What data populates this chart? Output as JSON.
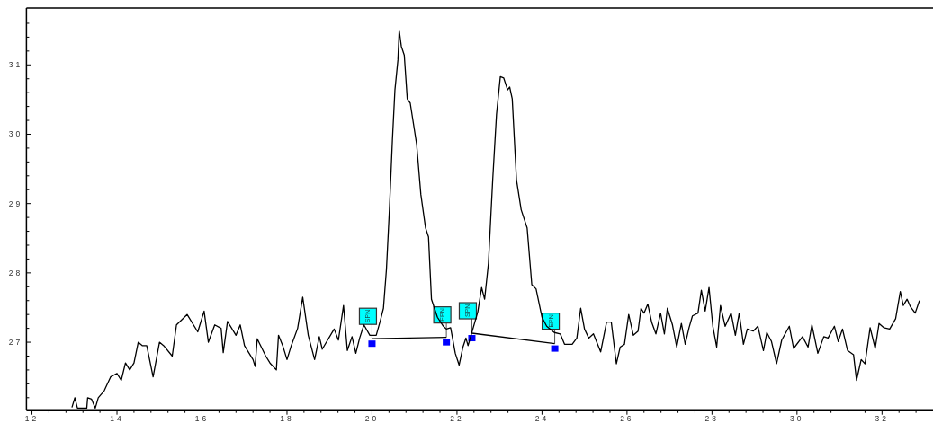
{
  "chart_data": {
    "type": "line",
    "xlim": [
      11.87,
      33.2
    ],
    "ylim": [
      26.02,
      31.82
    ],
    "xticks": [
      12,
      {
        "value": 12.4,
        "label": null
      },
      {
        "value": 12.8,
        "label": null
      },
      {
        "value": 13.2,
        "label": null
      },
      {
        "value": 13.6,
        "label": null
      },
      14,
      {
        "value": 14.4,
        "label": null
      },
      {
        "value": 14.8,
        "label": null
      },
      {
        "value": 15.2,
        "label": null
      },
      {
        "value": 15.6,
        "label": null
      },
      16,
      {
        "value": 16.4,
        "label": null
      },
      {
        "value": 16.8,
        "label": null
      },
      {
        "value": 17.2,
        "label": null
      },
      {
        "value": 17.6,
        "label": null
      },
      18,
      {
        "value": 18.4,
        "label": null
      },
      {
        "value": 18.8,
        "label": null
      },
      {
        "value": 19.2,
        "label": null
      },
      {
        "value": 19.6,
        "label": null
      },
      20,
      {
        "value": 20.4,
        "label": null
      },
      {
        "value": 20.8,
        "label": null
      },
      {
        "value": 21.2,
        "label": null
      },
      {
        "value": 21.6,
        "label": null
      },
      22,
      {
        "value": 22.4,
        "label": null
      },
      {
        "value": 22.8,
        "label": null
      },
      {
        "value": 23.2,
        "label": null
      },
      {
        "value": 23.6,
        "label": null
      },
      24,
      {
        "value": 24.4,
        "label": null
      },
      {
        "value": 24.8,
        "label": null
      },
      {
        "value": 25.2,
        "label": null
      },
      {
        "value": 25.6,
        "label": null
      },
      26,
      {
        "value": 26.4,
        "label": null
      },
      {
        "value": 26.8,
        "label": null
      },
      {
        "value": 27.2,
        "label": null
      },
      {
        "value": 27.6,
        "label": null
      },
      28,
      {
        "value": 28.4,
        "label": null
      },
      {
        "value": 28.8,
        "label": null
      },
      {
        "value": 29.2,
        "label": null
      },
      {
        "value": 29.6,
        "label": null
      },
      30,
      {
        "value": 30.4,
        "label": null
      },
      {
        "value": 30.8,
        "label": null
      },
      {
        "value": 31.2,
        "label": null
      },
      {
        "value": 31.6,
        "label": null
      },
      32,
      {
        "value": 32.4,
        "label": null
      },
      {
        "value": 32.8,
        "label": null
      }
    ],
    "yticks": [
      {
        "value": 26.2,
        "label": null
      },
      {
        "value": 26.4,
        "label": null
      },
      {
        "value": 26.6,
        "label": null
      },
      {
        "value": 26.8,
        "label": null
      },
      27,
      {
        "value": 27.2,
        "label": null
      },
      {
        "value": 27.4,
        "label": null
      },
      {
        "value": 27.6,
        "label": null
      },
      {
        "value": 27.8,
        "label": null
      },
      28,
      {
        "value": 28.2,
        "label": null
      },
      {
        "value": 28.4,
        "label": null
      },
      {
        "value": 28.6,
        "label": null
      },
      {
        "value": 28.8,
        "label": null
      },
      29,
      {
        "value": 29.2,
        "label": null
      },
      {
        "value": 29.4,
        "label": null
      },
      {
        "value": 29.6,
        "label": null
      },
      {
        "value": 29.8,
        "label": null
      },
      30,
      {
        "value": 30.2,
        "label": null
      },
      {
        "value": 30.4,
        "label": null
      },
      {
        "value": 30.6,
        "label": null
      },
      {
        "value": 30.8,
        "label": null
      },
      31,
      {
        "value": 31.2,
        "label": null
      },
      {
        "value": 31.4,
        "label": null
      },
      {
        "value": 31.6,
        "label": null
      }
    ],
    "series": [
      {
        "color": "#000000",
        "x": [
          12.94,
          13.01,
          13.07,
          13.29,
          13.31,
          13.4,
          13.49,
          13.56,
          13.7,
          13.85,
          14.0,
          14.1,
          14.2,
          14.3,
          14.4,
          14.5,
          14.6,
          14.7,
          14.85,
          15.0,
          15.1,
          15.3,
          15.4,
          15.65,
          15.9,
          16.05,
          16.15,
          16.3,
          16.45,
          16.5,
          16.6,
          16.8,
          16.9,
          17.0,
          17.2,
          17.25,
          17.3,
          17.5,
          17.6,
          17.75,
          17.8,
          17.9,
          18.0,
          18.1,
          18.25,
          18.37,
          18.5,
          18.65,
          18.76,
          18.83,
          19.11,
          19.21,
          19.33,
          19.42,
          19.53,
          19.62,
          19.71,
          19.81,
          19.95,
          20.1,
          20.2,
          20.27,
          20.34,
          20.41,
          20.48,
          20.54,
          20.61,
          20.64,
          20.69,
          20.76,
          20.83,
          20.9,
          21.05,
          21.15,
          21.26,
          21.33,
          21.4,
          21.47,
          21.54,
          21.68,
          21.75,
          21.85,
          21.96,
          22.05,
          22.14,
          22.21,
          22.26,
          22.35,
          22.49,
          22.58,
          22.65,
          22.74,
          22.84,
          22.93,
          23.02,
          23.1,
          23.19,
          23.24,
          23.3,
          23.4,
          23.51,
          23.65,
          23.76,
          23.86,
          24.0,
          24.11,
          24.29,
          24.43,
          24.53,
          24.71,
          24.82,
          24.91,
          25.0,
          25.1,
          25.21,
          25.38,
          25.52,
          25.63,
          25.75,
          25.84,
          25.94,
          26.04,
          26.15,
          26.26,
          26.33,
          26.4,
          26.49,
          26.58,
          26.68,
          26.79,
          26.88,
          26.95,
          27.07,
          27.17,
          27.28,
          27.37,
          27.46,
          27.54,
          27.67,
          27.75,
          27.84,
          27.93,
          28.02,
          28.11,
          28.2,
          28.31,
          28.45,
          28.55,
          28.64,
          28.74,
          28.83,
          28.97,
          29.08,
          29.21,
          29.29,
          29.4,
          29.52,
          29.64,
          29.82,
          29.92,
          30.13,
          30.26,
          30.35,
          30.49,
          30.63,
          30.73,
          30.88,
          30.97,
          31.07,
          31.19,
          31.33,
          31.4,
          31.51,
          31.6,
          31.72,
          31.84,
          31.93,
          32.04,
          32.18,
          32.32,
          32.43,
          32.5,
          32.59,
          32.67,
          32.78,
          32.88
        ],
        "values": [
          26.06,
          26.2,
          26.05,
          26.05,
          26.2,
          26.18,
          26.05,
          26.2,
          26.3,
          26.5,
          26.55,
          26.45,
          26.7,
          26.6,
          26.7,
          27.0,
          26.95,
          26.95,
          26.5,
          27.0,
          26.95,
          26.8,
          27.25,
          27.4,
          27.15,
          27.45,
          27.0,
          27.25,
          27.2,
          26.85,
          27.3,
          27.1,
          27.25,
          26.95,
          26.75,
          26.65,
          27.05,
          26.8,
          26.7,
          26.6,
          27.1,
          26.95,
          26.75,
          26.95,
          27.2,
          27.65,
          27.1,
          26.75,
          27.08,
          26.9,
          27.19,
          27.03,
          27.53,
          26.88,
          27.08,
          26.84,
          27.06,
          27.25,
          27.1,
          27.1,
          27.32,
          27.49,
          28.05,
          28.91,
          29.91,
          30.64,
          31.07,
          31.5,
          31.27,
          31.14,
          30.51,
          30.45,
          29.86,
          29.13,
          28.65,
          28.52,
          27.62,
          27.49,
          27.36,
          27.23,
          27.19,
          27.21,
          26.84,
          26.67,
          26.93,
          27.06,
          26.95,
          27.14,
          27.44,
          27.79,
          27.62,
          28.14,
          29.34,
          30.29,
          30.83,
          30.81,
          30.64,
          30.68,
          30.51,
          29.34,
          28.91,
          28.65,
          27.83,
          27.77,
          27.36,
          27.23,
          27.14,
          27.12,
          26.97,
          26.97,
          27.06,
          27.49,
          27.19,
          27.06,
          27.12,
          26.86,
          27.29,
          27.29,
          26.69,
          26.93,
          26.97,
          27.4,
          27.1,
          27.16,
          27.49,
          27.42,
          27.55,
          27.29,
          27.12,
          27.42,
          27.12,
          27.49,
          27.25,
          26.93,
          27.27,
          26.97,
          27.21,
          27.38,
          27.42,
          27.75,
          27.45,
          27.79,
          27.23,
          26.93,
          27.53,
          27.23,
          27.42,
          27.1,
          27.42,
          26.97,
          27.19,
          27.16,
          27.23,
          26.88,
          27.14,
          27.01,
          26.69,
          27.03,
          27.23,
          26.91,
          27.08,
          26.93,
          27.25,
          26.84,
          27.08,
          27.06,
          27.23,
          27.01,
          27.19,
          26.88,
          26.82,
          26.45,
          26.75,
          26.69,
          27.21,
          26.91,
          27.27,
          27.21,
          27.19,
          27.34,
          27.73,
          27.53,
          27.62,
          27.51,
          27.42,
          27.6
        ]
      },
      {
        "color": "#000000",
        "x": [
          20.0,
          21.75
        ],
        "values": [
          27.05,
          27.07
        ]
      },
      {
        "color": "#000000",
        "x": [
          22.35,
          24.3
        ],
        "values": [
          27.13,
          26.98
        ]
      }
    ],
    "annotations": [
      {
        "text": "SPN",
        "x": 20.0,
        "y": 27.05
      },
      {
        "text": "EPN",
        "x": 21.75,
        "y": 27.07
      },
      {
        "text": "SPN",
        "x": 22.35,
        "y": 27.13
      },
      {
        "text": "EPN",
        "x": 24.3,
        "y": 26.98
      }
    ]
  }
}
